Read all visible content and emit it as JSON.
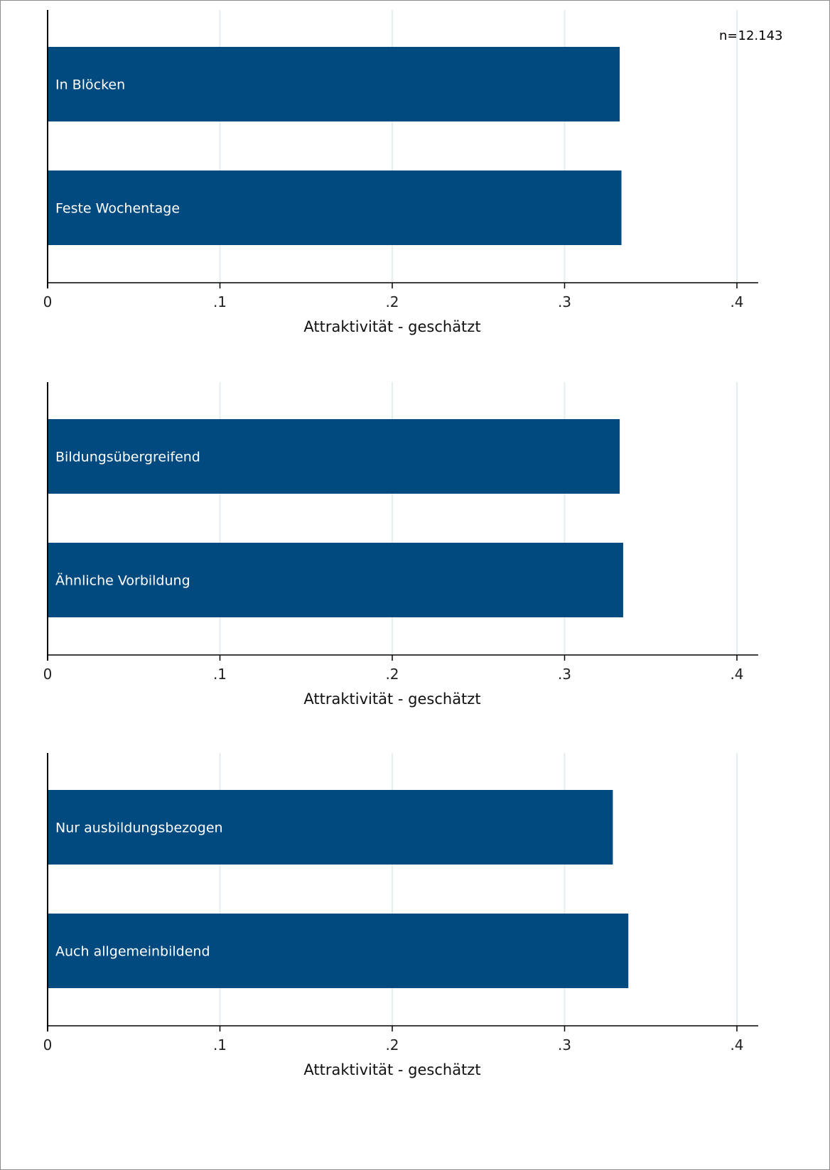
{
  "sample_note": "n=12.143",
  "colors": {
    "bar": "#004a80",
    "grid": "#e4eef0",
    "axis": "#000000"
  },
  "chart_data": [
    {
      "type": "bar",
      "orientation": "horizontal",
      "categories": [
        "In Blöcken",
        "Feste Wochentage"
      ],
      "values": [
        0.332,
        0.333
      ],
      "xlabel": "Attraktivität - geschätzt",
      "xlim": [
        0,
        0.4
      ],
      "ticks": [
        0,
        0.1,
        0.2,
        0.3,
        0.4
      ],
      "tick_labels": [
        "0",
        ".1",
        ".2",
        ".3",
        ".4"
      ],
      "grid": true
    },
    {
      "type": "bar",
      "orientation": "horizontal",
      "categories": [
        "Bildungsübergreifend",
        "Ähnliche Vorbildung"
      ],
      "values": [
        0.332,
        0.334
      ],
      "xlabel": "Attraktivität - geschätzt",
      "xlim": [
        0,
        0.4
      ],
      "ticks": [
        0,
        0.1,
        0.2,
        0.3,
        0.4
      ],
      "tick_labels": [
        "0",
        ".1",
        ".2",
        ".3",
        ".4"
      ],
      "grid": true
    },
    {
      "type": "bar",
      "orientation": "horizontal",
      "categories": [
        "Nur ausbildungsbezogen",
        "Auch allgemeinbildend"
      ],
      "values": [
        0.328,
        0.337
      ],
      "xlabel": "Attraktivität - geschätzt",
      "xlim": [
        0,
        0.4
      ],
      "ticks": [
        0,
        0.1,
        0.2,
        0.3,
        0.4
      ],
      "tick_labels": [
        "0",
        ".1",
        ".2",
        ".3",
        ".4"
      ],
      "grid": true
    }
  ]
}
